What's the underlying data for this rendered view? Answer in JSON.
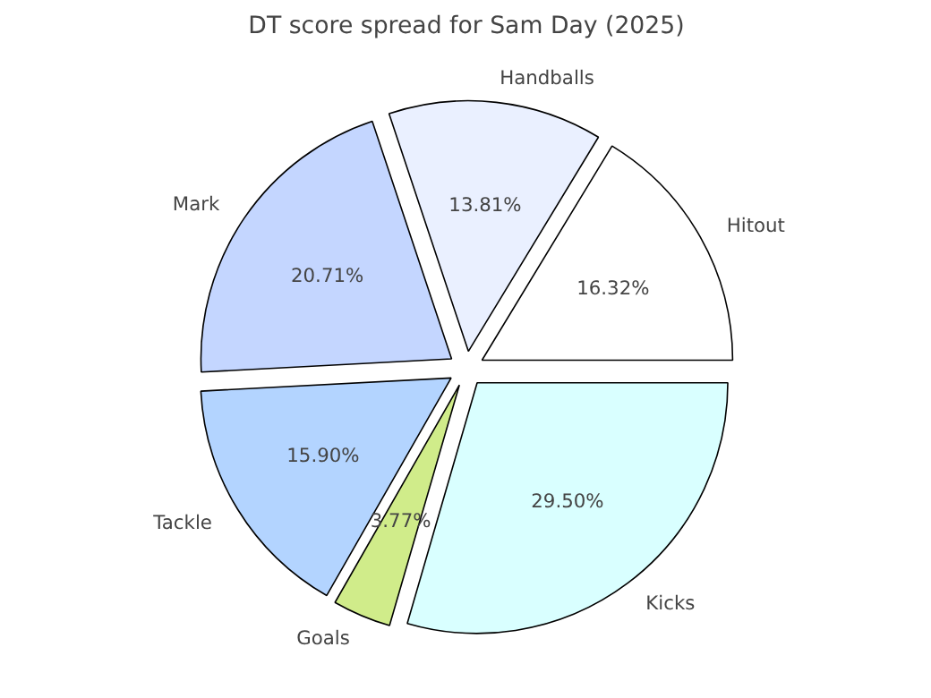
{
  "chart_data": {
    "type": "pie",
    "title": "DT score spread for Sam Day (2025)",
    "categories": [
      "Hitout",
      "Handballs",
      "Mark",
      "Tackle",
      "Goals",
      "Kicks"
    ],
    "values": [
      16.32,
      13.81,
      20.71,
      15.9,
      3.77,
      29.5
    ],
    "colors": [
      "#ffffff",
      "#eaf0ff",
      "#c4d6ff",
      "#b3d4ff",
      "#d0ec8a",
      "#d9ffff"
    ],
    "value_labels": [
      "16.32%",
      "13.81%",
      "20.71%",
      "15.90%",
      "3.77%",
      "29.50%"
    ]
  }
}
